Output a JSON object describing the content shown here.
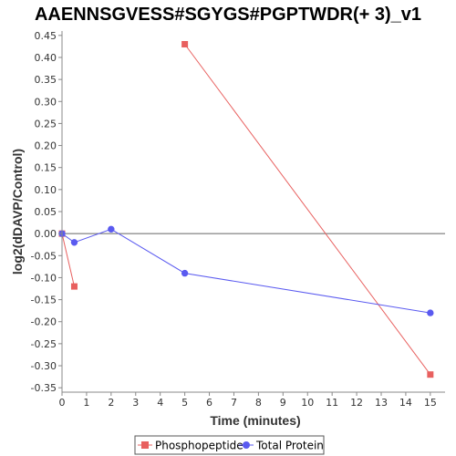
{
  "chart_data": {
    "type": "line",
    "title": "AAENNSGVESS#SGYGS#PGPTWDR(+ 3)_v1",
    "xlabel": "Time (minutes)",
    "ylabel": "log2(dDAVP/Control)",
    "xlim": [
      0,
      15.6
    ],
    "ylim": [
      -0.36,
      0.46
    ],
    "x_ticks": [
      0,
      1,
      2,
      3,
      4,
      5,
      6,
      7,
      8,
      9,
      10,
      11,
      12,
      13,
      14,
      15
    ],
    "y_ticks": [
      0.45,
      0.4,
      0.35,
      0.3,
      0.25,
      0.2,
      0.15,
      0.1,
      0.05,
      0.0,
      -0.05,
      -0.1,
      -0.15,
      -0.2,
      -0.25,
      -0.3,
      -0.35
    ],
    "y_tick_labels": [
      "0.45",
      "0.40",
      "0.35",
      "0.30",
      "0.25",
      "0.20",
      "0.15",
      "0.10",
      "0.05",
      "0.00",
      "-0.05",
      "-0.10",
      "-0.15",
      "-0.20",
      "-0.25",
      "-0.30",
      "-0.35"
    ],
    "zero_line": true,
    "grid": false,
    "legend_position": "bottom",
    "series": [
      {
        "name": "Phosphopeptide",
        "color": "#e8605f",
        "marker": "square",
        "segments": [
          [
            {
              "x": 0,
              "y": 0.0
            },
            {
              "x": 0.5,
              "y": -0.12
            }
          ],
          [
            {
              "x": 5,
              "y": 0.43
            },
            {
              "x": 15,
              "y": -0.32
            }
          ]
        ]
      },
      {
        "name": "Total Protein",
        "color": "#5a5af0",
        "marker": "circle",
        "segments": [
          [
            {
              "x": 0,
              "y": 0.0
            },
            {
              "x": 0.5,
              "y": -0.02
            },
            {
              "x": 2,
              "y": 0.01
            },
            {
              "x": 5,
              "y": -0.09
            },
            {
              "x": 15,
              "y": -0.18
            }
          ]
        ]
      }
    ]
  }
}
